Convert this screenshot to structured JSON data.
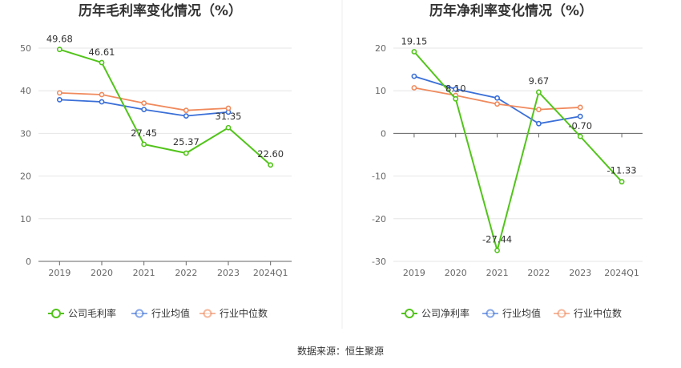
{
  "source_label": "数据来源：恒生聚源",
  "colors": {
    "company": "#52c41a",
    "avg": "#3a6fd8",
    "median": "#f08a5d",
    "grid": "#e6e6e6",
    "axis": "#666666"
  },
  "chart_data": [
    {
      "type": "line",
      "title": "历年毛利率变化情况（%）",
      "categories": [
        "2019",
        "2020",
        "2021",
        "2022",
        "2023",
        "2024Q1"
      ],
      "ylim": [
        0,
        50
      ],
      "yticks": [
        0,
        10,
        20,
        30,
        40,
        50
      ],
      "grid": true,
      "legend_position": "bottom",
      "series": [
        {
          "name": "公司毛利率",
          "key": "company",
          "values": [
            49.68,
            46.61,
            27.45,
            25.37,
            31.35,
            22.6
          ],
          "labels": [
            "49.68",
            "46.61",
            "27.45",
            "25.37",
            "31.35",
            "22.60"
          ]
        },
        {
          "name": "行业均值",
          "key": "avg",
          "values": [
            37.9,
            37.4,
            35.6,
            34.1,
            35.0,
            null
          ]
        },
        {
          "name": "行业中位数",
          "key": "median",
          "values": [
            39.5,
            39.1,
            37.1,
            35.4,
            35.9,
            null
          ]
        }
      ]
    },
    {
      "type": "line",
      "title": "历年净利率变化情况（%）",
      "categories": [
        "2019",
        "2020",
        "2021",
        "2022",
        "2023",
        "2024Q1"
      ],
      "ylim": [
        -30,
        20
      ],
      "yticks": [
        -30,
        -20,
        -10,
        0,
        10,
        20
      ],
      "grid": true,
      "legend_position": "bottom",
      "series": [
        {
          "name": "公司净利率",
          "key": "company",
          "values": [
            19.15,
            8.1,
            -27.44,
            9.67,
            -0.7,
            -11.33
          ],
          "labels": [
            "19.15",
            "8.10",
            "-27.44",
            "9.67",
            "-0.70",
            "-11.33"
          ]
        },
        {
          "name": "行业均值",
          "key": "avg",
          "values": [
            13.4,
            10.4,
            8.3,
            2.3,
            4.0,
            null
          ]
        },
        {
          "name": "行业中位数",
          "key": "median",
          "values": [
            10.7,
            8.9,
            6.9,
            5.6,
            6.1,
            null
          ]
        }
      ]
    }
  ]
}
